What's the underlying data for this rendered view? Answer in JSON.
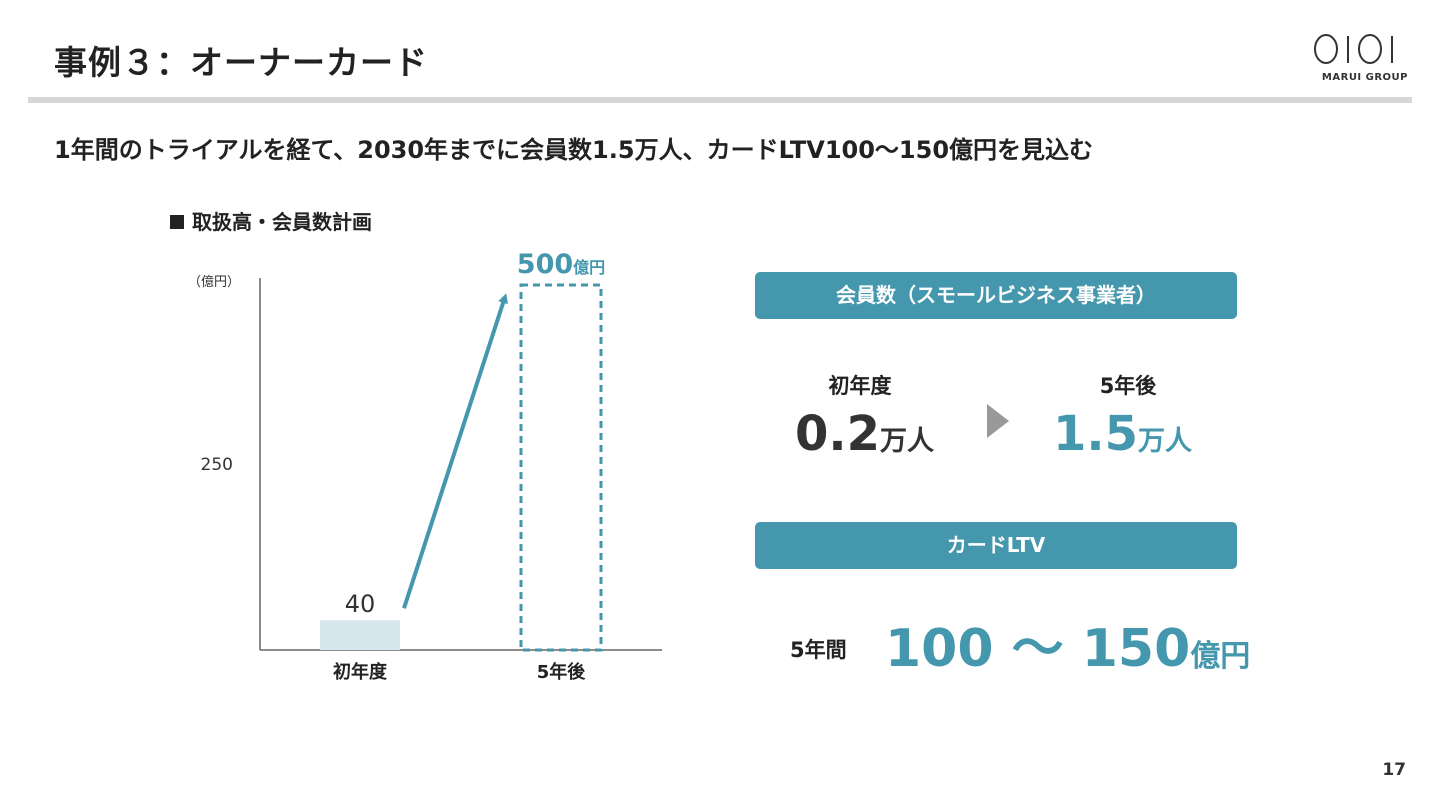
{
  "header": {
    "title": "事例３：オーナーカード",
    "logo_text": "MARUI GROUP"
  },
  "subtitle": "1年間のトライアルを経て、2030年までに会員数1.5万人、カードLTV100〜150億円を見込む",
  "section_label": "取扱高・会員数計画",
  "chart_data": {
    "type": "bar",
    "unit_label": "（億円）",
    "categories": [
      "初年度",
      "5年後"
    ],
    "values": [
      40,
      500
    ],
    "data_labels": [
      "40",
      "500"
    ],
    "target_unit": "億円",
    "y_ticks": [
      "250"
    ],
    "ylim": [
      0,
      500
    ],
    "colors": {
      "bar": "#d5e6ec",
      "target": "#4497ad",
      "arrow": "#4497ad",
      "axis": "#666666"
    }
  },
  "members": {
    "panel_title": "会員数（スモールビジネス事業者）",
    "first_label": "初年度",
    "first_value": "0.2",
    "first_unit": "万人",
    "later_label": "5年後",
    "later_value": "1.5",
    "later_unit": "万人"
  },
  "ltv": {
    "panel_title": "カードLTV",
    "period_label": "5年間",
    "value": "100 〜 150",
    "unit": "億円"
  },
  "page_number": "17",
  "colors": {
    "accent": "#4497ad",
    "text": "#222222",
    "rule": "#d6d6d6"
  }
}
